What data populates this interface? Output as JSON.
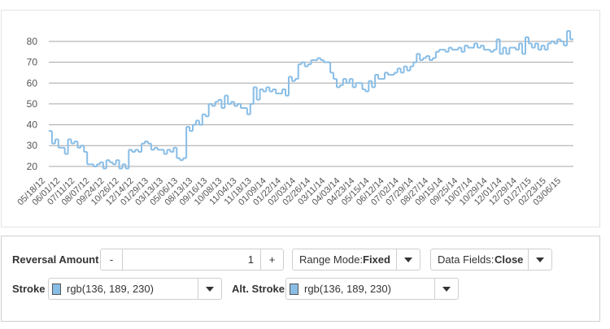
{
  "chart_data": {
    "type": "line",
    "style": "step",
    "series_color": "#88bde6",
    "y_ticks": [
      20,
      30,
      40,
      50,
      60,
      70,
      80
    ],
    "ylim": [
      18,
      87
    ],
    "grid": "horizontal",
    "x_tick_labels": [
      "05/18/12",
      "06/01/12",
      "07/11/12",
      "08/07/12",
      "09/24/12",
      "10/26/12",
      "12/14/12",
      "01/29/13",
      "03/13/13",
      "05/06/13",
      "08/13/13",
      "09/16/13",
      "10/08/13",
      "11/04/13",
      "11/18/13",
      "01/09/14",
      "01/22/14",
      "02/03/14",
      "02/26/14",
      "03/11/14",
      "04/03/14",
      "04/23/14",
      "05/15/14",
      "06/12/14",
      "07/02/14",
      "07/29/14",
      "08/27/14",
      "09/15/14",
      "09/25/14",
      "10/07/14",
      "10/29/14",
      "12/01/14",
      "12/29/14",
      "01/27/15",
      "02/23/15",
      "03/06/15"
    ],
    "values": [
      37,
      31,
      33,
      29,
      29,
      26,
      33,
      31,
      32,
      29,
      30,
      27,
      21,
      21,
      20,
      21,
      22,
      19,
      23,
      22,
      21,
      23,
      19,
      21,
      19,
      28,
      27,
      28,
      27,
      31,
      32,
      31,
      28,
      29,
      28,
      28,
      26,
      28,
      27,
      29,
      24,
      23,
      24,
      39,
      37,
      40,
      42,
      40,
      45,
      44,
      50,
      49,
      51,
      52,
      48,
      54,
      50,
      51,
      49,
      50,
      48,
      48,
      45,
      50,
      58,
      52,
      57,
      56,
      58,
      56,
      57,
      55,
      55,
      57,
      54,
      63,
      61,
      62,
      69,
      70,
      68,
      69,
      71,
      71,
      72,
      71,
      70,
      70,
      65,
      62,
      58,
      59,
      62,
      60,
      62,
      58,
      60,
      60,
      57,
      56,
      61,
      58,
      64,
      62,
      62,
      65,
      64,
      64,
      65,
      67,
      65,
      68,
      66,
      68,
      70,
      74,
      71,
      72,
      73,
      71,
      72,
      75,
      76,
      76,
      75,
      77,
      76,
      76,
      77,
      75,
      78,
      77,
      77,
      79,
      77,
      78,
      76,
      76,
      75,
      76,
      81,
      74,
      77,
      74,
      77,
      77,
      76,
      79,
      74,
      82,
      79,
      77,
      79,
      76,
      78,
      76,
      79,
      80,
      79,
      81,
      80,
      78,
      85,
      81
    ]
  },
  "controls": {
    "reversal_label": "Reversal Amount",
    "reversal_minus": "-",
    "reversal_value": "1",
    "reversal_plus": "+",
    "range_prefix": "Range Mode: ",
    "range_value": "Fixed",
    "fields_prefix": "Data Fields: ",
    "fields_value": "Close",
    "stroke_label": "Stroke",
    "stroke_value": "rgb(136, 189, 230)",
    "alt_stroke_label": "Alt. Stroke",
    "alt_stroke_value": "rgb(136, 189, 230)"
  }
}
